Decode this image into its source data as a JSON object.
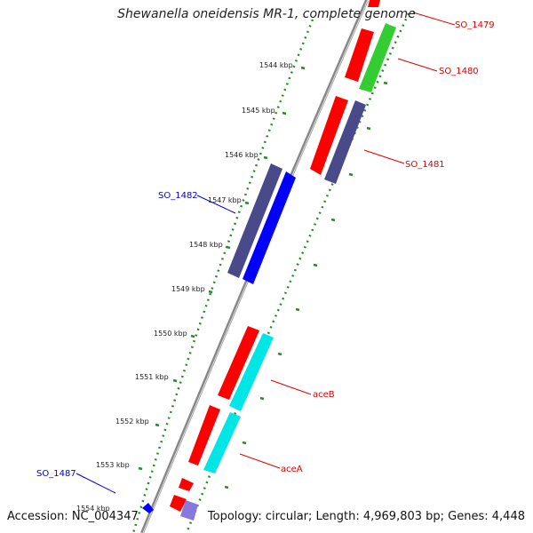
{
  "title": "Shewanella oneidensis MR-1, complete genome",
  "accession": "Accession: NC_004347",
  "summary": "Topology: circular; Length: 4,969,803 bp; Genes: 4,448",
  "colors": {
    "backbone": "#888888",
    "tick": "#2a8a2a",
    "forward_gene": "#ff0000",
    "reverse_gene": "#0000ff",
    "navy_gene": "#4a4a8a",
    "green_gene": "#33cc33",
    "cyan_gene": "#00e5e5",
    "lavender_gene": "#8877dd",
    "label_red": "#dd0000",
    "label_blue": "#0000cc"
  },
  "scale_labels": [
    "1544 kbp",
    "1545 kbp",
    "1546 kbp",
    "1547 kbp",
    "1548 kbp",
    "1549 kbp",
    "1550 kbp",
    "1551 kbp",
    "1552 kbp",
    "1553 kbp",
    "1554 kbp"
  ],
  "gene_labels": {
    "so_1479": "SO_1479",
    "so_1480": "SO_1480",
    "so_1481": "SO_1481",
    "so_1482": "SO_1482",
    "aceB": "aceB",
    "aceA": "aceA",
    "so_1487": "SO_1487"
  }
}
